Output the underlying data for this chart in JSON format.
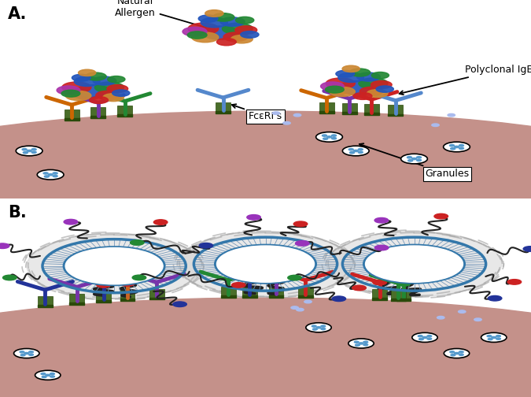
{
  "bg_color": "#ffffff",
  "cell_color_light": "#c4918a",
  "cell_color_dark": "#7a3c35",
  "panel_A_label": "A.",
  "panel_B_label": "B.",
  "label_fontsize": 15,
  "annotation_fontsize": 9,
  "fceris_text": "FcεRI's",
  "granules_text": "Granules",
  "polyclonal_text": "Polyclonal IgEs",
  "natural_allergen_text": "Natural\nAllergen",
  "blob_colors": [
    "#2255bb",
    "#cc2222",
    "#228833",
    "#cc8833",
    "#aa33aa"
  ],
  "receptor_color": "#4a6e2a",
  "granule_dot_color": "#5599cc"
}
